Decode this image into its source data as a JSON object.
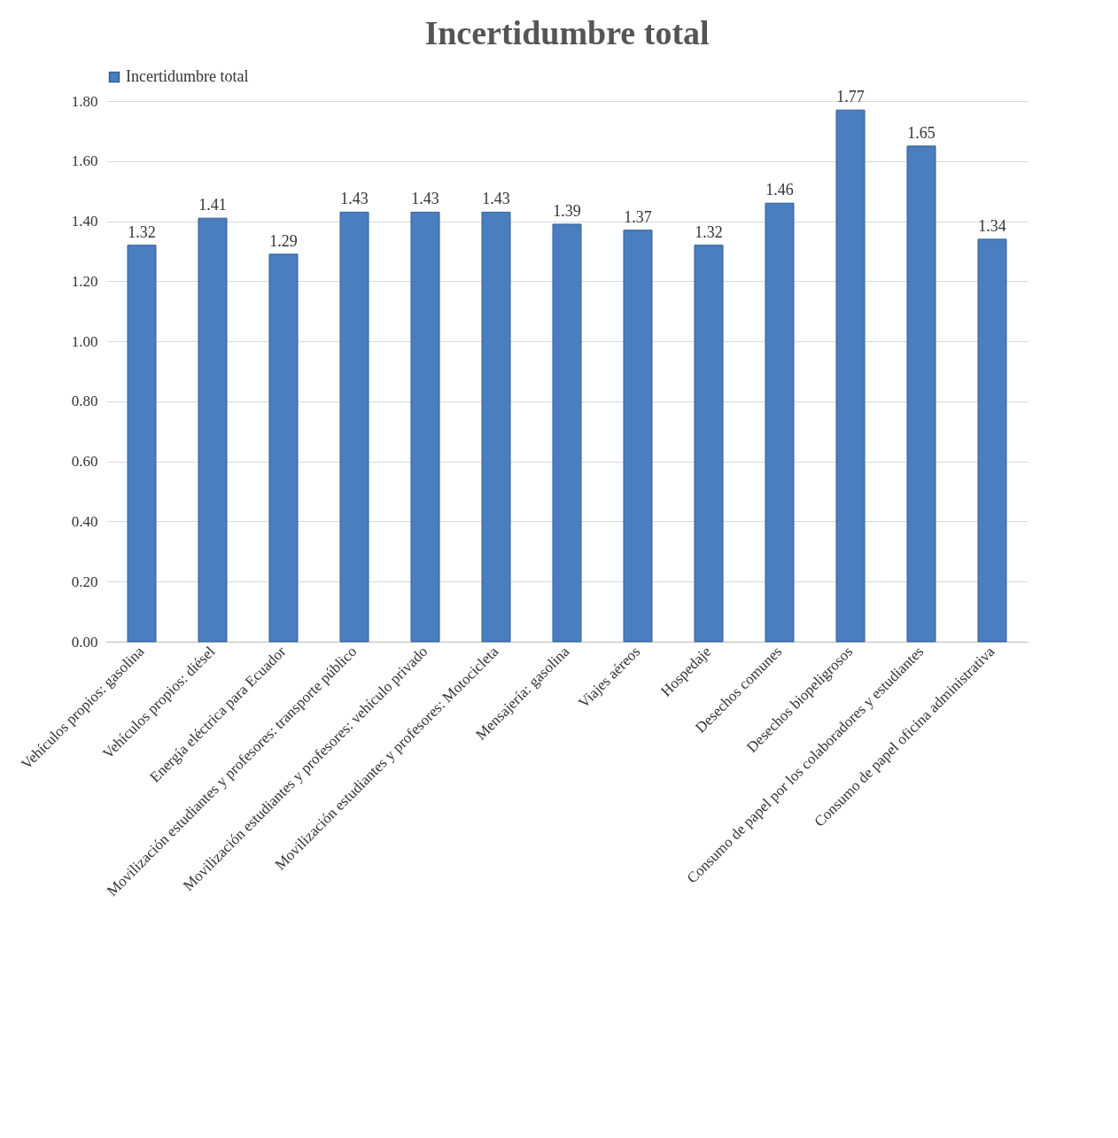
{
  "chart_data": {
    "type": "bar",
    "title": "Incertidumbre total",
    "categories": [
      "Vehículos propios: gasolina",
      "Vehículos propios: diésel",
      "Energía eléctrica para Ecuador",
      "Movilización estudiantes y profesores: transporte público",
      "Movilización estudiantes y profesores: vehículo privado",
      "Movilización estudiantes y profesores: Motocicleta",
      "Mensajería: gasolina",
      "Viajes aéreos",
      "Hospedaje",
      "Desechos comunes",
      "Desechos biopeligrosos",
      "Consumo de papel por los colaboradores y estudiantes",
      "Consumo de papel oficina administrativa"
    ],
    "series": [
      {
        "name": "Incertidumbre total",
        "color": "#4a7ebf",
        "values": [
          1.32,
          1.41,
          1.29,
          1.43,
          1.43,
          1.43,
          1.39,
          1.37,
          1.32,
          1.46,
          1.77,
          1.65,
          1.34
        ]
      }
    ],
    "ylim": [
      0,
      1.8
    ],
    "yticks": [
      {
        "value": 0,
        "label": "0.00"
      },
      {
        "value": 0.2,
        "label": "0.20"
      },
      {
        "value": 0.4,
        "label": "0.40"
      },
      {
        "value": 0.6,
        "label": "0.60"
      },
      {
        "value": 0.8,
        "label": "0.80"
      },
      {
        "value": 1,
        "label": "1.00"
      },
      {
        "value": 1.2,
        "label": "1.20"
      },
      {
        "value": 1.4,
        "label": "1.40"
      },
      {
        "value": 1.6,
        "label": "1.60"
      },
      {
        "value": 1.8,
        "label": "1.80"
      }
    ],
    "grid": "y",
    "legend": "top",
    "data_labels": true
  }
}
